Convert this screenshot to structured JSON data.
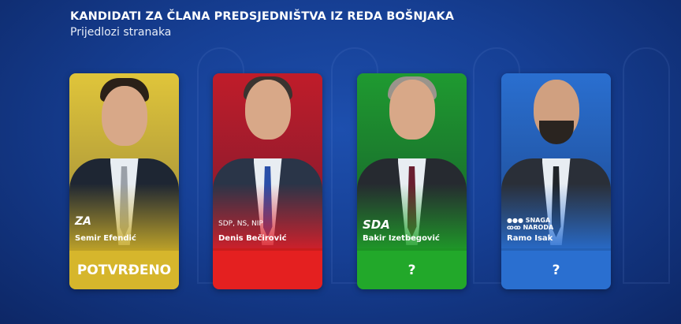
{
  "header": {
    "title": "KANDIDATI ZA ČLANA PREDSJEDNIŠTVA IZ REDA BOŠNJAKA",
    "subtitle": "Prijedlozi stranaka"
  },
  "candidates": [
    {
      "name": "Semir Efendić",
      "party_logo": "ZA",
      "status": "POTVRĐENO",
      "color": "#d6b62c",
      "bg": "#c9a82a"
    },
    {
      "name": "Denis Bečirović",
      "party": "SDP, NS, NIP",
      "status": "",
      "color": "#e42020",
      "bg": "#c81c2a"
    },
    {
      "name": "Bakir Izetbegović",
      "party_logo": "SDA",
      "status": "?",
      "color": "#22a82a",
      "bg": "#1f8e2e"
    },
    {
      "name": "Ramo Isak",
      "party_logo": "SNAGA NARODA",
      "status": "?",
      "color": "#2a6fd0",
      "bg": "#2560bd"
    }
  ]
}
